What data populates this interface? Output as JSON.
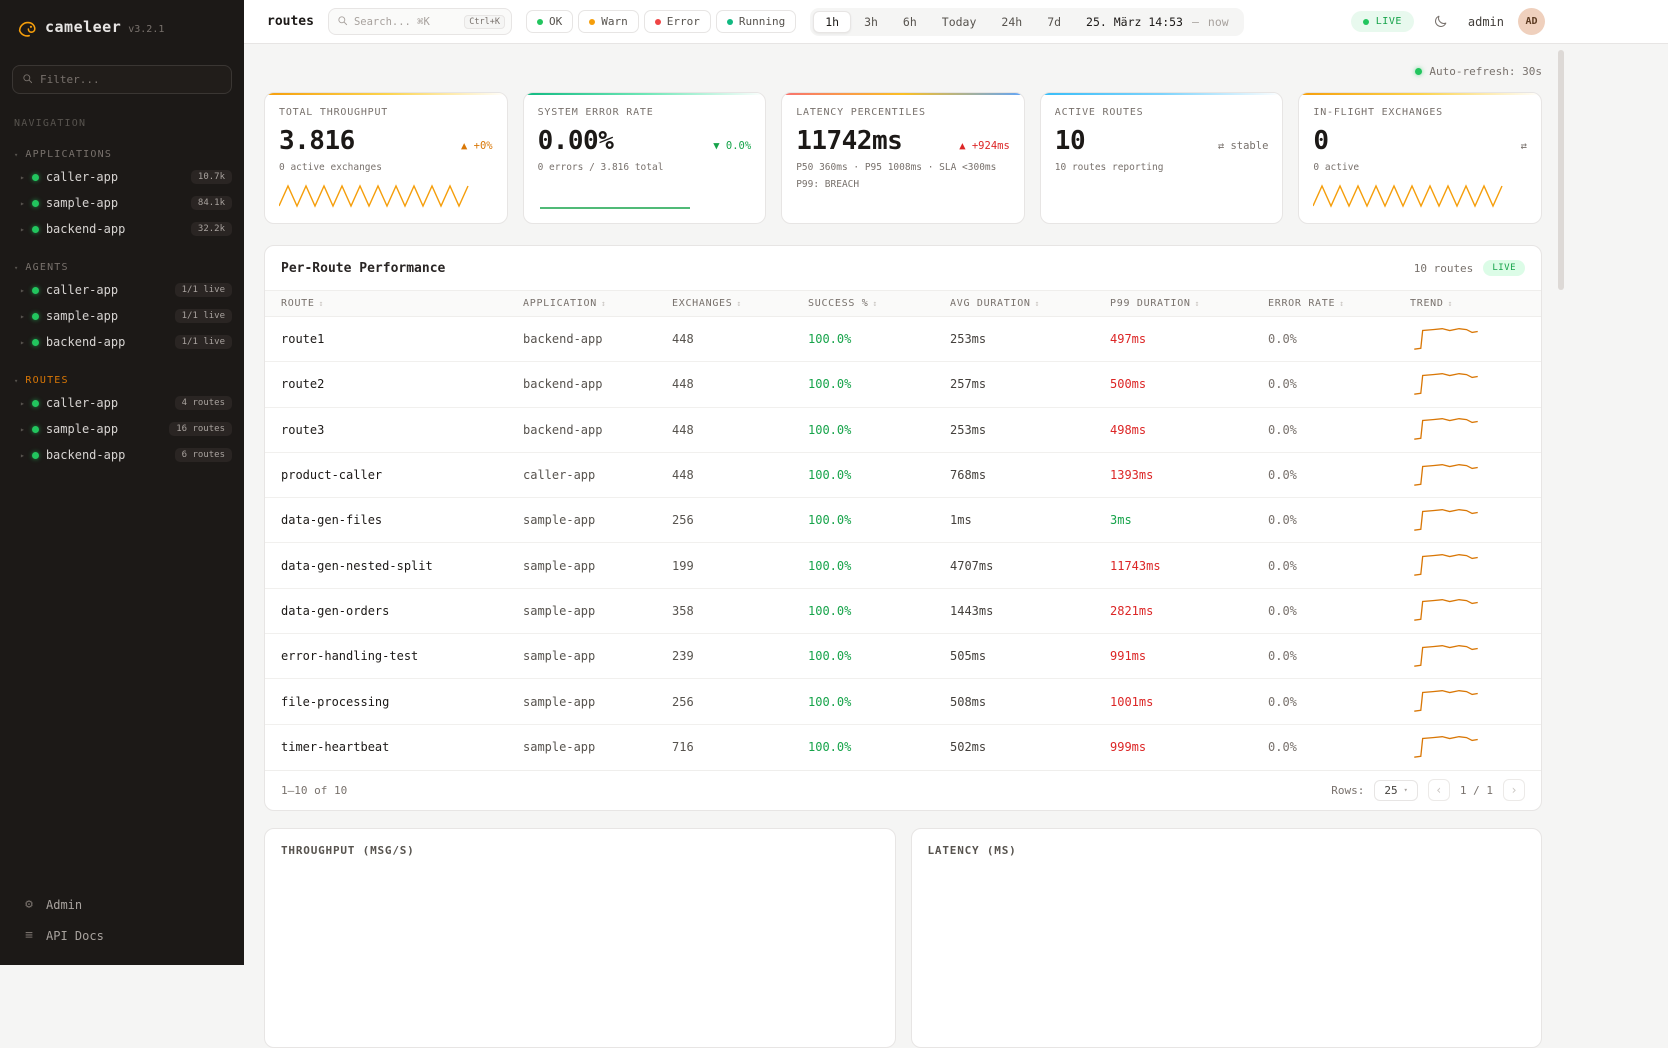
{
  "app": {
    "name": "cameleer",
    "version": "v3.2.1"
  },
  "sidebar": {
    "filter_placeholder": "Filter...",
    "nav_label": "NAVIGATION",
    "sections": [
      {
        "label": "APPLICATIONS",
        "active": false,
        "items": [
          {
            "name": "caller-app",
            "badge": "10.7k"
          },
          {
            "name": "sample-app",
            "badge": "84.1k"
          },
          {
            "name": "backend-app",
            "badge": "32.2k"
          }
        ]
      },
      {
        "label": "AGENTS",
        "active": false,
        "items": [
          {
            "name": "caller-app",
            "badge": "1/1 live"
          },
          {
            "name": "sample-app",
            "badge": "1/1 live"
          },
          {
            "name": "backend-app",
            "badge": "1/1 live"
          }
        ]
      },
      {
        "label": "ROUTES",
        "active": true,
        "items": [
          {
            "name": "caller-app",
            "badge": "4 routes"
          },
          {
            "name": "sample-app",
            "badge": "16 routes"
          },
          {
            "name": "backend-app",
            "badge": "6 routes"
          }
        ]
      }
    ],
    "footer": [
      {
        "label": "Admin"
      },
      {
        "label": "API Docs"
      }
    ]
  },
  "topbar": {
    "title": "routes",
    "search_placeholder": "Search... ⌘K",
    "search_shortcut": "Ctrl+K",
    "status_chips": [
      {
        "label": "OK",
        "color": "#22c55e"
      },
      {
        "label": "Warn",
        "color": "#f59e0b"
      },
      {
        "label": "Error",
        "color": "#ef4444"
      },
      {
        "label": "Running",
        "color": "#10b981"
      }
    ],
    "time_ranges": [
      "1h",
      "3h",
      "6h",
      "Today",
      "24h",
      "7d"
    ],
    "active_range": "1h",
    "date_start": "25. März 14:53",
    "date_sep": "—",
    "date_end": "now",
    "live_label": "LIVE",
    "user": "admin",
    "avatar": "AD"
  },
  "main": {
    "auto_refresh": "Auto-refresh: 30s",
    "stat_cards": [
      {
        "label": "TOTAL THROUGHPUT",
        "value": "3.816",
        "delta": "▲ +0%",
        "delta_color": "#d97706",
        "sub": "0 active exchanges",
        "spark": "saw",
        "accent": "linear-gradient(90deg,#f59e0b,#fcd34d,#ffffff)"
      },
      {
        "label": "SYSTEM ERROR RATE",
        "value": "0.00%",
        "delta": "▼ 0.0%",
        "delta_color": "#16a34a",
        "sub": "0 errors / 3.816 total",
        "spark": "flat",
        "accent": "linear-gradient(90deg,#10b981,#6ee7b7,#ffffff)"
      },
      {
        "label": "LATENCY PERCENTILES",
        "value": "11742ms",
        "delta": "▲ +924ms",
        "delta_color": "#dc2626",
        "sub": "P50 360ms · P95 1008ms · SLA <300ms",
        "sub2": "P99: BREACH",
        "spark": "none",
        "accent": "linear-gradient(90deg,#f87171,#fbbf24,#60a5fa)"
      },
      {
        "label": "ACTIVE ROUTES",
        "value": "10",
        "delta": "⇄ stable",
        "delta_color": "#78716c",
        "sub": "10 routes reporting",
        "spark": "none",
        "accent": "linear-gradient(90deg,#38bdf8,#7dd3fc,#ffffff)"
      },
      {
        "label": "IN-FLIGHT EXCHANGES",
        "value": "0",
        "delta": "⇄",
        "delta_color": "#78716c",
        "sub": "0 active",
        "spark": "saw",
        "accent": "linear-gradient(90deg,#f59e0b,#fcd34d,#ffffff)"
      }
    ],
    "table": {
      "title": "Per-Route Performance",
      "routes_count": "10 routes",
      "live_label": "LIVE",
      "sort_icon": "↕",
      "columns": [
        "ROUTE",
        "APPLICATION",
        "EXCHANGES",
        "SUCCESS %",
        "AVG DURATION",
        "P99 DURATION",
        "ERROR RATE",
        "TREND"
      ],
      "rows": [
        {
          "route": "route1",
          "application": "backend-app",
          "exchanges": "448",
          "success": "100.0%",
          "avg": "253ms",
          "p99": "497ms",
          "p99_breach": true,
          "error_rate": "0.0%"
        },
        {
          "route": "route2",
          "application": "backend-app",
          "exchanges": "448",
          "success": "100.0%",
          "avg": "257ms",
          "p99": "500ms",
          "p99_breach": true,
          "error_rate": "0.0%"
        },
        {
          "route": "route3",
          "application": "backend-app",
          "exchanges": "448",
          "success": "100.0%",
          "avg": "253ms",
          "p99": "498ms",
          "p99_breach": true,
          "error_rate": "0.0%"
        },
        {
          "route": "product-caller",
          "application": "caller-app",
          "exchanges": "448",
          "success": "100.0%",
          "avg": "768ms",
          "p99": "1393ms",
          "p99_breach": true,
          "error_rate": "0.0%"
        },
        {
          "route": "data-gen-files",
          "application": "sample-app",
          "exchanges": "256",
          "success": "100.0%",
          "avg": "1ms",
          "p99": "3ms",
          "p99_breach": false,
          "error_rate": "0.0%"
        },
        {
          "route": "data-gen-nested-split",
          "application": "sample-app",
          "exchanges": "199",
          "success": "100.0%",
          "avg": "4707ms",
          "p99": "11743ms",
          "p99_breach": true,
          "error_rate": "0.0%"
        },
        {
          "route": "data-gen-orders",
          "application": "sample-app",
          "exchanges": "358",
          "success": "100.0%",
          "avg": "1443ms",
          "p99": "2821ms",
          "p99_breach": true,
          "error_rate": "0.0%"
        },
        {
          "route": "error-handling-test",
          "application": "sample-app",
          "exchanges": "239",
          "success": "100.0%",
          "avg": "505ms",
          "p99": "991ms",
          "p99_breach": true,
          "error_rate": "0.0%"
        },
        {
          "route": "file-processing",
          "application": "sample-app",
          "exchanges": "256",
          "success": "100.0%",
          "avg": "508ms",
          "p99": "1001ms",
          "p99_breach": true,
          "error_rate": "0.0%"
        },
        {
          "route": "timer-heartbeat",
          "application": "sample-app",
          "exchanges": "716",
          "success": "100.0%",
          "avg": "502ms",
          "p99": "999ms",
          "p99_breach": true,
          "error_rate": "0.0%"
        }
      ],
      "footer": {
        "range": "1–10 of 10",
        "rows_label": "Rows:",
        "rows_value": "25",
        "prev": "‹",
        "page": "1 / 1",
        "next": "›"
      }
    },
    "charts": [
      {
        "title": "THROUGHPUT (MSG/S)"
      },
      {
        "title": "LATENCY (MS)"
      }
    ],
    "colors": {
      "accent_orange": "#d97706",
      "success_green": "#16a34a",
      "breach_red": "#dc2626"
    }
  }
}
